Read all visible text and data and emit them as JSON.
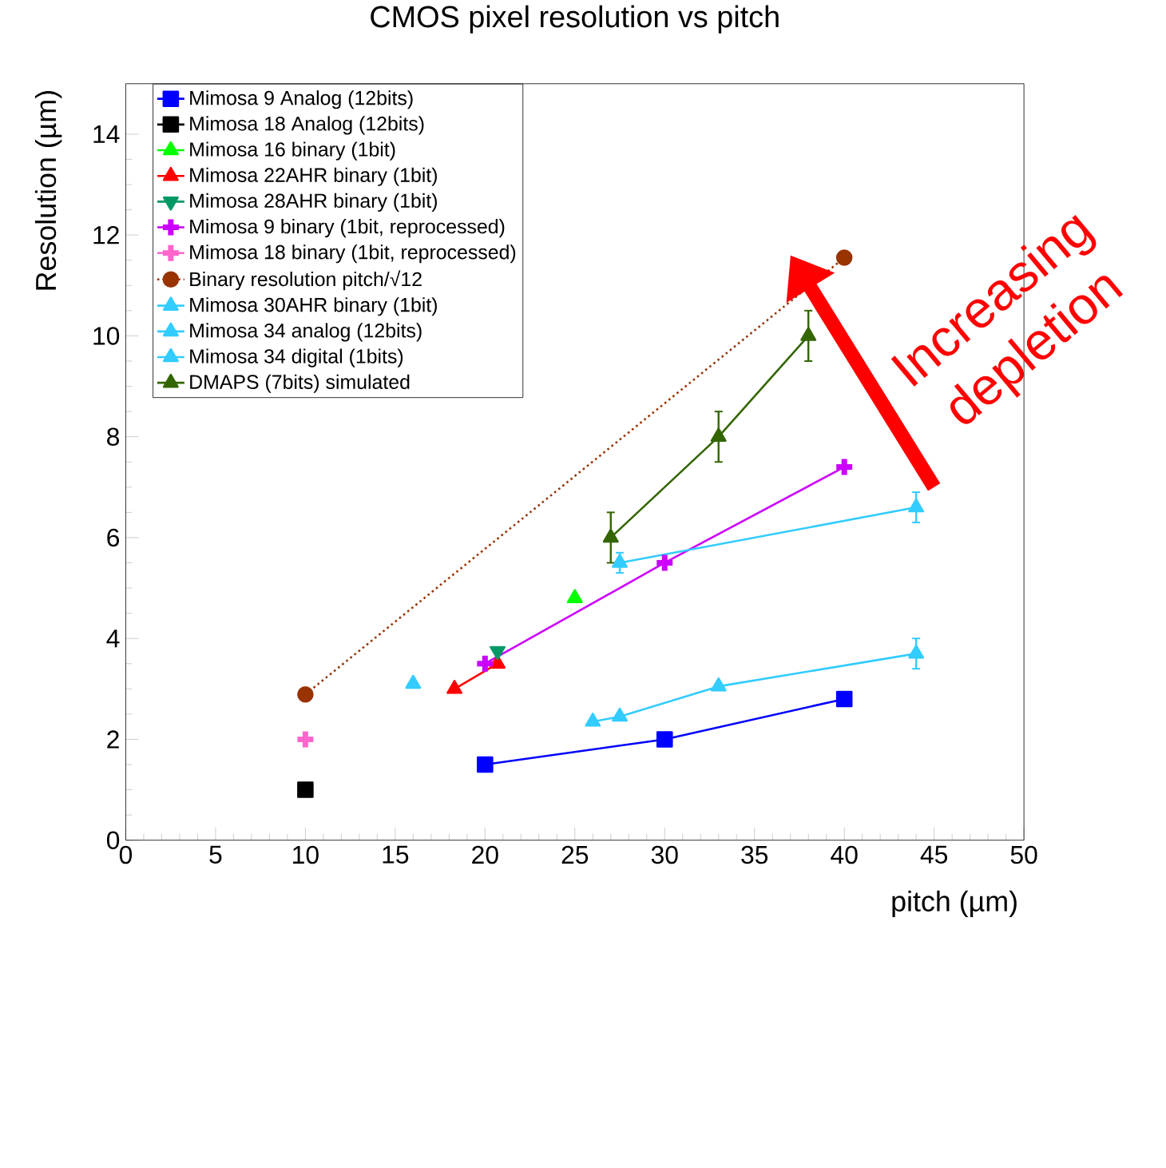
{
  "chart_data": {
    "type": "line",
    "title": "CMOS pixel resolution vs pitch",
    "xlabel": "pitch (µm)",
    "ylabel": "Resolution (µm)",
    "xlim": [
      0,
      50
    ],
    "ylim": [
      0,
      15
    ],
    "xticks": [
      0,
      5,
      10,
      15,
      20,
      25,
      30,
      35,
      40,
      45,
      50
    ],
    "yticks": [
      0,
      2,
      4,
      6,
      8,
      10,
      12,
      14
    ],
    "legend": "top left",
    "annotations": [
      "Increasing depletion"
    ],
    "series": [
      {
        "name": "Mimosa  9 Analog (12bits)",
        "color": "#0000ff",
        "marker": "square",
        "line_style": "solid",
        "x": [
          20,
          30,
          40
        ],
        "values": [
          1.5,
          2.0,
          2.8
        ]
      },
      {
        "name": "Mimosa 18 Analog (12bits)",
        "color": "#000000",
        "marker": "square",
        "line_style": "solid",
        "x": [
          10
        ],
        "values": [
          1.0
        ]
      },
      {
        "name": "Mimosa 16 binary (1bit)",
        "color": "#00ff00",
        "marker": "triangle",
        "line_style": "solid",
        "x": [
          25
        ],
        "values": [
          4.8
        ]
      },
      {
        "name": "Mimosa 22AHR binary (1bit)",
        "color": "#ff0000",
        "marker": "triangle",
        "line_style": "solid",
        "x": [
          18.3,
          20.7
        ],
        "values": [
          3.0,
          3.5
        ]
      },
      {
        "name": "Mimosa 28AHR binary (1bit)",
        "color": "#009966",
        "marker": "triangle-down",
        "line_style": "solid",
        "x": [
          20.7
        ],
        "values": [
          3.75
        ]
      },
      {
        "name": "Mimosa 9 binary (1bit, reprocessed)",
        "color": "#cc00ff",
        "marker": "cross",
        "line_style": "solid",
        "x": [
          20,
          30,
          40
        ],
        "values": [
          3.5,
          5.5,
          7.4
        ]
      },
      {
        "name": "Mimosa 18 binary (1bit, reprocessed)",
        "color": "#ff66cc",
        "marker": "cross",
        "line_style": "solid",
        "x": [
          10
        ],
        "values": [
          2.0
        ]
      },
      {
        "name": "Binary resolution pitch/√12",
        "color": "#993300",
        "marker": "circle",
        "line_style": "dotted",
        "x": [
          10,
          40
        ],
        "values": [
          2.89,
          11.55
        ]
      },
      {
        "name": "Mimosa 30AHR binary (1bit)",
        "color": "#33ccff",
        "marker": "triangle",
        "line_style": "solid",
        "x": [
          16
        ],
        "values": [
          3.1
        ]
      },
      {
        "name": "Mimosa 34 analog (12bits)",
        "color": "#33ccff",
        "marker": "triangle",
        "line_style": "solid",
        "x": [
          27.5,
          44
        ],
        "values": [
          5.5,
          6.6
        ],
        "errors": [
          0.2,
          0.3
        ]
      },
      {
        "name": "Mimosa 34 digital (1bits)",
        "color": "#33ccff",
        "marker": "triangle",
        "line_style": "solid",
        "x": [
          26,
          27.5,
          33,
          44
        ],
        "values": [
          2.35,
          2.45,
          3.05,
          3.7
        ],
        "errors": [
          null,
          null,
          null,
          0.3
        ]
      },
      {
        "name": "DMAPS (7bits) simulated",
        "color": "#336600",
        "marker": "triangle",
        "line_style": "solid",
        "x": [
          27,
          33,
          38
        ],
        "values": [
          6.0,
          8.0,
          10.0
        ],
        "errors": [
          0.5,
          0.5,
          0.5
        ]
      }
    ]
  }
}
